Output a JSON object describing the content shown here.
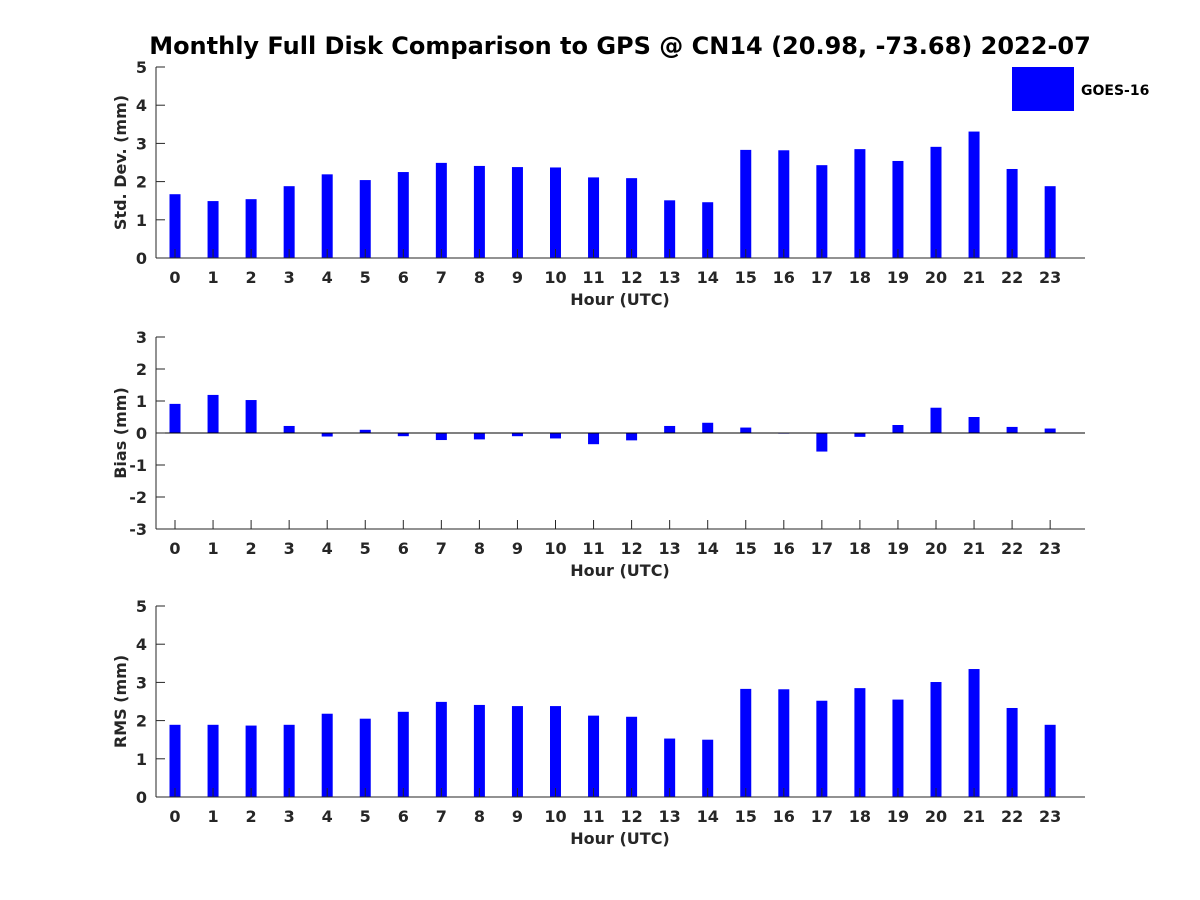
{
  "chart_data": {
    "type": "bar",
    "title": "Monthly Full Disk Comparison to GPS @ CN14 (20.98, -73.68) 2022-07",
    "legend": {
      "label": "GOES-16",
      "color": "#0000ff",
      "placement": "top-right"
    },
    "categories": [
      "0",
      "1",
      "2",
      "3",
      "4",
      "5",
      "6",
      "7",
      "8",
      "9",
      "10",
      "11",
      "12",
      "13",
      "14",
      "15",
      "16",
      "17",
      "18",
      "19",
      "20",
      "21",
      "22",
      "23"
    ],
    "panels": [
      {
        "name": "std-dev",
        "series_name": "GOES-16",
        "ylabel": "Std. Dev. (mm)",
        "xlabel": "Hour (UTC)",
        "ylim": [
          0,
          5
        ],
        "yticks": [
          0,
          1,
          2,
          3,
          4,
          5
        ],
        "values": [
          1.67,
          1.49,
          1.54,
          1.88,
          2.19,
          2.04,
          2.25,
          2.49,
          2.41,
          2.38,
          2.37,
          2.11,
          2.09,
          1.51,
          1.46,
          2.83,
          2.82,
          2.43,
          2.85,
          2.54,
          2.91,
          3.31,
          2.33,
          1.88
        ]
      },
      {
        "name": "bias",
        "series_name": "GOES-16",
        "ylabel": "Bias (mm)",
        "xlabel": "Hour (UTC)",
        "ylim": [
          -3,
          3
        ],
        "yticks": [
          -3,
          -2,
          -1,
          0,
          1,
          2,
          3
        ],
        "values": [
          0.91,
          1.19,
          1.03,
          0.22,
          -0.11,
          0.1,
          -0.1,
          -0.22,
          -0.2,
          -0.1,
          -0.17,
          -0.35,
          -0.23,
          0.22,
          0.32,
          0.17,
          -0.02,
          -0.58,
          -0.12,
          0.25,
          0.79,
          0.5,
          0.19,
          0.14
        ]
      },
      {
        "name": "rms",
        "series_name": "GOES-16",
        "ylabel": "RMS (mm)",
        "xlabel": "Hour (UTC)",
        "ylim": [
          0,
          5
        ],
        "yticks": [
          0,
          1,
          2,
          3,
          4,
          5
        ],
        "values": [
          1.89,
          1.89,
          1.87,
          1.89,
          2.18,
          2.05,
          2.23,
          2.49,
          2.41,
          2.38,
          2.38,
          2.13,
          2.1,
          1.53,
          1.5,
          2.83,
          2.82,
          2.52,
          2.85,
          2.55,
          3.01,
          3.35,
          2.33,
          1.89
        ]
      }
    ]
  }
}
